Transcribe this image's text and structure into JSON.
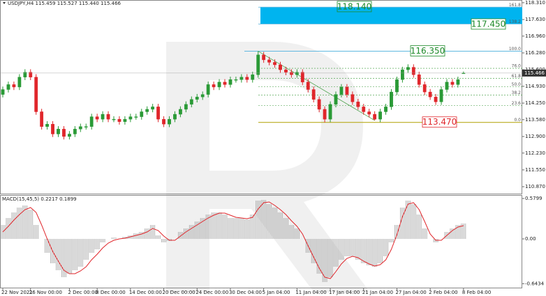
{
  "chart_data": {
    "type": "candlestick",
    "title": "USDJPY,H4 115.459 115.527 115.440 115.466",
    "up_color": "#2a9a36",
    "down_color": "#e0262b",
    "ylim": [
      110.59,
      118.42
    ],
    "yticks": [
      {
        "value": 118.31,
        "label": "118.310"
      },
      {
        "value": 117.63,
        "label": "117.630"
      },
      {
        "value": 116.96,
        "label": "116.960"
      },
      {
        "value": 116.28,
        "label": "116.280"
      },
      {
        "value": 115.6,
        "label": "115.600"
      },
      {
        "value": 114.93,
        "label": "114.930"
      },
      {
        "value": 114.25,
        "label": "114.250"
      },
      {
        "value": 113.58,
        "label": "113.580"
      },
      {
        "value": 112.9,
        "label": "112.900"
      },
      {
        "value": 112.23,
        "label": "112.230"
      },
      {
        "value": 111.55,
        "label": "111.550"
      },
      {
        "value": 110.87,
        "label": "110.870"
      }
    ],
    "xticks": [
      {
        "value": 0,
        "label": "22 Nov 2021"
      },
      {
        "value": 5,
        "label": "26 Nov 00:00"
      },
      {
        "value": 12,
        "label": "2 Dec 00:00"
      },
      {
        "value": 17,
        "label": "8 Dec 00:00"
      },
      {
        "value": 23,
        "label": "14 Dec 00:00"
      },
      {
        "value": 29,
        "label": "20 Dec 00:00"
      },
      {
        "value": 35,
        "label": "24 Dec 00:00"
      },
      {
        "value": 41,
        "label": "30 Dec 04:00"
      },
      {
        "value": 47,
        "label": "5 Jan 04:00"
      },
      {
        "value": 53,
        "label": "11 Jan 04:00"
      },
      {
        "value": 59,
        "label": "17 Jan 04:00"
      },
      {
        "value": 65,
        "label": "21 Jan 04:00"
      },
      {
        "value": 71,
        "label": "27 Jan 04:00"
      },
      {
        "value": 77,
        "label": "2 Feb 04:00"
      },
      {
        "value": 83,
        "label": "8 Feb 04:00"
      }
    ],
    "last_price": {
      "value": 115.466,
      "label": "115.466"
    },
    "candles": [
      [
        114.6,
        114.92,
        114.48,
        114.8
      ],
      [
        114.8,
        115.12,
        114.68,
        115.0
      ],
      [
        115.0,
        115.12,
        114.78,
        114.9
      ],
      [
        114.9,
        115.42,
        114.78,
        115.3
      ],
      [
        115.3,
        115.62,
        115.18,
        115.5
      ],
      [
        115.5,
        115.62,
        115.18,
        115.3
      ],
      [
        115.3,
        115.42,
        113.78,
        113.9
      ],
      [
        113.9,
        114.02,
        113.18,
        113.3
      ],
      [
        113.3,
        113.52,
        113.18,
        113.4
      ],
      [
        113.4,
        113.52,
        112.88,
        113.0
      ],
      [
        113.0,
        113.32,
        112.88,
        113.2
      ],
      [
        113.2,
        113.32,
        112.78,
        112.9
      ],
      [
        112.9,
        113.12,
        112.78,
        113.0
      ],
      [
        113.0,
        113.32,
        112.88,
        113.2
      ],
      [
        113.2,
        113.42,
        113.08,
        113.3
      ],
      [
        113.3,
        113.42,
        113.18,
        113.3
      ],
      [
        113.3,
        113.82,
        113.18,
        113.7
      ],
      [
        113.7,
        113.82,
        113.48,
        113.6
      ],
      [
        113.6,
        113.92,
        113.48,
        113.8
      ],
      [
        113.8,
        113.92,
        113.48,
        113.6
      ],
      [
        113.6,
        113.72,
        113.48,
        113.6
      ],
      [
        113.6,
        113.72,
        113.38,
        113.5
      ],
      [
        113.5,
        113.72,
        113.38,
        113.6
      ],
      [
        113.6,
        113.82,
        113.48,
        113.7
      ],
      [
        113.7,
        113.82,
        113.58,
        113.7
      ],
      [
        113.7,
        114.02,
        113.58,
        113.9
      ],
      [
        113.9,
        114.12,
        113.78,
        114.0
      ],
      [
        114.0,
        114.22,
        113.88,
        114.1
      ],
      [
        114.1,
        114.22,
        113.48,
        113.6
      ],
      [
        113.6,
        113.72,
        113.28,
        113.4
      ],
      [
        113.4,
        113.72,
        113.28,
        113.6
      ],
      [
        113.6,
        113.92,
        113.48,
        113.8
      ],
      [
        113.8,
        114.12,
        113.68,
        114.0
      ],
      [
        114.0,
        114.32,
        113.88,
        114.2
      ],
      [
        114.2,
        114.52,
        114.08,
        114.4
      ],
      [
        114.4,
        114.62,
        114.28,
        114.5
      ],
      [
        114.5,
        114.72,
        114.38,
        114.6
      ],
      [
        114.6,
        115.12,
        114.48,
        115.0
      ],
      [
        115.0,
        115.12,
        114.78,
        114.9
      ],
      [
        114.9,
        115.22,
        114.78,
        115.1
      ],
      [
        115.1,
        115.22,
        114.88,
        115.0
      ],
      [
        115.0,
        115.32,
        114.88,
        115.2
      ],
      [
        115.2,
        115.32,
        115.08,
        115.2
      ],
      [
        115.2,
        115.42,
        115.08,
        115.3
      ],
      [
        115.3,
        115.42,
        115.08,
        115.2
      ],
      [
        115.2,
        115.52,
        115.08,
        115.4
      ],
      [
        115.4,
        116.35,
        115.28,
        116.2
      ],
      [
        116.2,
        116.32,
        115.88,
        116.0
      ],
      [
        116.0,
        116.12,
        115.78,
        115.9
      ],
      [
        115.9,
        116.02,
        115.68,
        115.8
      ],
      [
        115.8,
        115.92,
        115.48,
        115.6
      ],
      [
        115.6,
        115.72,
        115.38,
        115.5
      ],
      [
        115.5,
        115.62,
        115.28,
        115.4
      ],
      [
        115.4,
        115.62,
        115.28,
        115.5
      ],
      [
        115.5,
        115.62,
        114.98,
        115.1
      ],
      [
        115.1,
        115.22,
        114.68,
        114.8
      ],
      [
        114.8,
        114.92,
        114.28,
        114.4
      ],
      [
        114.4,
        114.52,
        113.88,
        114.0
      ],
      [
        114.0,
        114.12,
        113.47,
        113.6
      ],
      [
        113.6,
        114.32,
        113.48,
        114.2
      ],
      [
        114.2,
        114.72,
        114.08,
        114.6
      ],
      [
        114.6,
        115.02,
        114.48,
        114.9
      ],
      [
        114.9,
        115.02,
        114.48,
        114.6
      ],
      [
        114.6,
        114.72,
        114.18,
        114.3
      ],
      [
        114.3,
        114.42,
        113.98,
        114.1
      ],
      [
        114.1,
        114.22,
        113.78,
        113.9
      ],
      [
        113.9,
        114.02,
        113.68,
        113.8
      ],
      [
        113.8,
        113.92,
        113.55,
        113.6
      ],
      [
        113.6,
        114.02,
        113.48,
        113.9
      ],
      [
        113.9,
        114.22,
        113.78,
        114.1
      ],
      [
        114.1,
        114.82,
        113.98,
        114.7
      ],
      [
        114.7,
        115.32,
        114.58,
        115.2
      ],
      [
        115.2,
        115.72,
        115.08,
        115.6
      ],
      [
        115.6,
        115.82,
        115.48,
        115.7
      ],
      [
        115.7,
        115.82,
        115.28,
        115.4
      ],
      [
        115.4,
        115.52,
        114.88,
        115.0
      ],
      [
        115.0,
        115.12,
        114.58,
        114.7
      ],
      [
        114.7,
        114.82,
        114.38,
        114.5
      ],
      [
        114.5,
        114.62,
        114.18,
        114.3
      ],
      [
        114.3,
        114.92,
        114.18,
        114.8
      ],
      [
        114.8,
        115.22,
        114.68,
        115.1
      ],
      [
        115.1,
        115.22,
        114.88,
        115.0
      ],
      [
        115.0,
        115.32,
        114.88,
        115.2
      ],
      [
        115.459,
        115.527,
        115.44,
        115.466
      ]
    ],
    "fibonacci": {
      "high": {
        "value": 116.35,
        "label": "116.350"
      },
      "low": {
        "value": 113.47,
        "label": "113.470"
      },
      "levels": [
        {
          "value": 0,
          "label": "0.0"
        },
        {
          "value": 23.6,
          "label": "23.6"
        },
        {
          "value": 38.2,
          "label": "38.2"
        },
        {
          "value": 50,
          "label": "50.0"
        },
        {
          "value": 61.8,
          "label": "61.8"
        },
        {
          "value": 76,
          "label": "76.0"
        },
        {
          "value": 100,
          "label": "100.0"
        },
        {
          "value": 138.2,
          "label": "138.2"
        },
        {
          "value": 161.8,
          "label": "161.8"
        }
      ],
      "targets": [
        {
          "value": 117.45,
          "label": "117.450"
        },
        {
          "value": 118.14,
          "label": "118.140"
        }
      ]
    },
    "macd": {
      "title": "MACD(15,45,5) 0.2217 0.1899",
      "ylim": [
        -0.75,
        0.63
      ],
      "yticks": [
        0.5799,
        {
          "value": 0,
          "label": "0.00"
        },
        -0.6434
      ],
      "histogram_color": "#a0a0a0",
      "signal_color": "#e0262b",
      "histogram": [
        0.2,
        0.3,
        0.38,
        0.45,
        0.48,
        0.42,
        0.2,
        0.0,
        -0.2,
        -0.35,
        -0.45,
        -0.55,
        -0.5,
        -0.45,
        -0.4,
        -0.3,
        -0.2,
        -0.15,
        -0.05,
        0.0,
        0.02,
        0.0,
        0.03,
        0.05,
        0.08,
        0.1,
        0.15,
        0.2,
        0.05,
        -0.05,
        -0.03,
        0.0,
        0.1,
        0.15,
        0.2,
        0.25,
        0.3,
        0.35,
        0.38,
        0.38,
        0.35,
        0.3,
        0.3,
        0.3,
        0.28,
        0.35,
        0.55,
        0.56,
        0.5,
        0.45,
        0.38,
        0.3,
        0.2,
        0.15,
        0.0,
        -0.2,
        -0.35,
        -0.5,
        -0.62,
        -0.55,
        -0.4,
        -0.3,
        -0.25,
        -0.25,
        -0.3,
        -0.35,
        -0.38,
        -0.4,
        -0.35,
        -0.25,
        -0.05,
        0.2,
        0.45,
        0.55,
        0.5,
        0.35,
        0.15,
        0.0,
        -0.05,
        0.0,
        0.1,
        0.15,
        0.2,
        0.2217
      ],
      "signal": [
        0.1,
        0.18,
        0.27,
        0.35,
        0.42,
        0.45,
        0.38,
        0.2,
        0.0,
        -0.18,
        -0.32,
        -0.45,
        -0.5,
        -0.5,
        -0.46,
        -0.4,
        -0.3,
        -0.22,
        -0.13,
        -0.06,
        -0.02,
        0.0,
        0.01,
        0.03,
        0.05,
        0.07,
        0.1,
        0.15,
        0.12,
        0.04,
        -0.02,
        -0.02,
        0.04,
        0.1,
        0.15,
        0.2,
        0.25,
        0.3,
        0.34,
        0.37,
        0.37,
        0.34,
        0.31,
        0.3,
        0.29,
        0.31,
        0.43,
        0.52,
        0.53,
        0.48,
        0.42,
        0.35,
        0.26,
        0.18,
        0.07,
        -0.1,
        -0.26,
        -0.42,
        -0.55,
        -0.57,
        -0.47,
        -0.36,
        -0.28,
        -0.25,
        -0.27,
        -0.32,
        -0.36,
        -0.39,
        -0.37,
        -0.3,
        -0.15,
        0.06,
        0.32,
        0.5,
        0.52,
        0.42,
        0.25,
        0.07,
        -0.02,
        -0.02,
        0.05,
        0.12,
        0.17,
        0.1899
      ]
    }
  }
}
